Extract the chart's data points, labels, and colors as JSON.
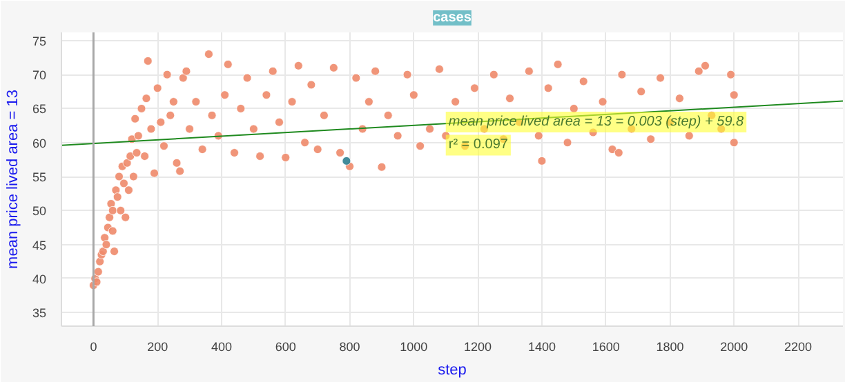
{
  "chart_data": {
    "type": "scatter",
    "title": "cases",
    "xlabel": "step",
    "ylabel": "mean price lived area = 13",
    "xlim": [
      -100,
      2340
    ],
    "ylim": [
      33,
      76.2
    ],
    "xticks": [
      0,
      200,
      400,
      600,
      800,
      1000,
      1200,
      1400,
      1600,
      1800,
      2000,
      2200
    ],
    "yticks": [
      35,
      40,
      45,
      50,
      55,
      60,
      65,
      70,
      75
    ],
    "grid": true,
    "marker": "circle",
    "ref_lines": [
      {
        "axis": "x",
        "value": 0,
        "color": "#a8a8a8"
      }
    ],
    "series": [
      {
        "color": "#ee8a6a",
        "x": [
          0,
          5,
          10,
          15,
          20,
          25,
          30,
          35,
          40,
          45,
          50,
          55,
          60,
          60,
          65,
          70,
          75,
          80,
          85,
          90,
          95,
          100,
          105,
          110,
          115,
          120,
          125,
          130,
          135,
          140,
          150,
          160,
          165,
          170,
          180,
          190,
          200,
          210,
          220,
          230,
          240,
          250,
          260,
          270,
          280,
          290,
          300,
          320,
          340,
          360,
          370,
          390,
          410,
          420,
          440,
          460,
          480,
          500,
          520,
          540,
          560,
          580,
          600,
          620,
          640,
          660,
          680,
          700,
          720,
          750,
          770,
          800,
          820,
          840,
          860,
          880,
          900,
          920,
          950,
          980,
          1000,
          1020,
          1050,
          1080,
          1100,
          1130,
          1160,
          1190,
          1220,
          1250,
          1280,
          1300,
          1330,
          1360,
          1390,
          1400,
          1420,
          1450,
          1480,
          1500,
          1530,
          1560,
          1590,
          1620,
          1640,
          1650,
          1680,
          1710,
          1740,
          1770,
          1800,
          1830,
          1860,
          1890,
          1910,
          1930,
          1960,
          1990,
          2000,
          2000
        ],
        "values": [
          39,
          40,
          39.5,
          41,
          42.5,
          43.5,
          44,
          46,
          45,
          47.5,
          49,
          51,
          50,
          47,
          44,
          53,
          52,
          55,
          50,
          56.5,
          54,
          49,
          57,
          53,
          58,
          60.5,
          55,
          63.5,
          58.5,
          61,
          65,
          58,
          66.5,
          72,
          62,
          55.5,
          68,
          63,
          59.5,
          70,
          64,
          66,
          57,
          55.8,
          69.5,
          70.5,
          62,
          66,
          59,
          73,
          64,
          61,
          67,
          71.5,
          58.5,
          65,
          69.5,
          62,
          58,
          67,
          70.5,
          63,
          57.8,
          66,
          71.3,
          60,
          68.5,
          59,
          64,
          71,
          58.5,
          56.5,
          69.5,
          62,
          66,
          70.5,
          56.4,
          64,
          61,
          70,
          67,
          59.5,
          62,
          70.8,
          61,
          66,
          59.5,
          68,
          62,
          70,
          60.5,
          66.5,
          63,
          70.5,
          61,
          57.3,
          68,
          71.5,
          60,
          65,
          69,
          61.5,
          66,
          59,
          58.5,
          70,
          62,
          67.5,
          60.5,
          69.5,
          63,
          66.5,
          61,
          70.5,
          71.3,
          64,
          62,
          70,
          67,
          60
        ]
      },
      {
        "color": "#2e7f90",
        "x": [
          790
        ],
        "values": [
          57.3
        ]
      },
      {
        "type": "line",
        "marker": "none",
        "color": "#1f8a1f",
        "x": [
          -100,
          2340
        ],
        "values": [
          59.6,
          66.1
        ]
      }
    ],
    "annotations": [
      "mean price lived area = 13 = 0.003 (step) + 59.8",
      "r² = 0.097"
    ]
  }
}
